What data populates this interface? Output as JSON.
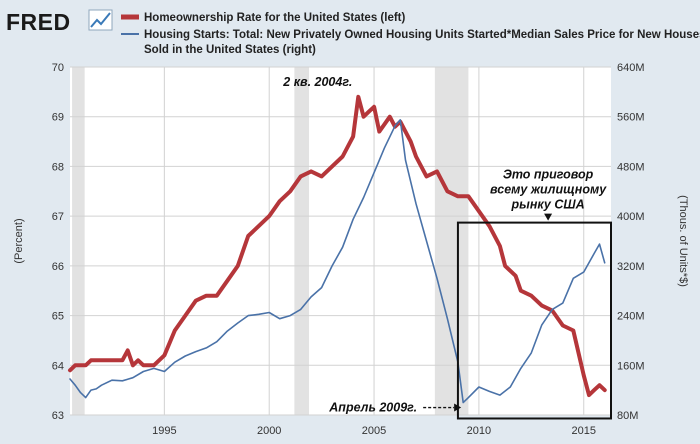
{
  "brand": {
    "name": "FRED"
  },
  "chart_data": {
    "type": "line",
    "x_range": [
      1990.5,
      2016.3
    ],
    "x_ticks": [
      1995,
      2000,
      2005,
      2010,
      2015
    ],
    "x_tick_labels": [
      "1995",
      "2000",
      "2005",
      "2010",
      "2015"
    ],
    "y_left": {
      "label": "(Percent)",
      "range": [
        63,
        70
      ],
      "ticks": [
        63,
        64,
        65,
        66,
        67,
        68,
        69,
        70
      ],
      "tick_labels": [
        "63",
        "64",
        "65",
        "66",
        "67",
        "68",
        "69",
        "70"
      ]
    },
    "y_right": {
      "label": "(Thous. of Units*$)",
      "range": [
        80,
        640
      ],
      "ticks": [
        80,
        160,
        240,
        320,
        400,
        480,
        560,
        640
      ],
      "tick_labels": [
        "80M",
        "160M",
        "240M",
        "320M",
        "400M",
        "480M",
        "560M",
        "640M"
      ]
    },
    "grid": true,
    "recessions": [
      [
        1990.6,
        1991.2
      ],
      [
        2001.2,
        2001.9
      ],
      [
        2007.9,
        2009.5
      ]
    ],
    "series": [
      {
        "name": "Homeownership Rate for the United States (left)",
        "axis": "left",
        "color": "#b5363a",
        "points": [
          [
            1990.5,
            63.9
          ],
          [
            1990.75,
            64.0
          ],
          [
            1991.0,
            64.0
          ],
          [
            1991.25,
            64.0
          ],
          [
            1991.5,
            64.1
          ],
          [
            1991.75,
            64.1
          ],
          [
            1992.0,
            64.1
          ],
          [
            1992.5,
            64.1
          ],
          [
            1993.0,
            64.1
          ],
          [
            1993.25,
            64.3
          ],
          [
            1993.5,
            64.0
          ],
          [
            1993.75,
            64.1
          ],
          [
            1994.0,
            64.0
          ],
          [
            1994.5,
            64.0
          ],
          [
            1995.0,
            64.2
          ],
          [
            1995.5,
            64.7
          ],
          [
            1996.0,
            65.0
          ],
          [
            1996.5,
            65.3
          ],
          [
            1997.0,
            65.4
          ],
          [
            1997.5,
            65.4
          ],
          [
            1998.0,
            65.7
          ],
          [
            1998.5,
            66.0
          ],
          [
            1999.0,
            66.6
          ],
          [
            1999.5,
            66.8
          ],
          [
            2000.0,
            67.0
          ],
          [
            2000.5,
            67.3
          ],
          [
            2001.0,
            67.5
          ],
          [
            2001.5,
            67.8
          ],
          [
            2002.0,
            67.9
          ],
          [
            2002.5,
            67.8
          ],
          [
            2003.0,
            68.0
          ],
          [
            2003.5,
            68.2
          ],
          [
            2004.0,
            68.6
          ],
          [
            2004.25,
            69.4
          ],
          [
            2004.5,
            69.0
          ],
          [
            2004.75,
            69.1
          ],
          [
            2005.0,
            69.2
          ],
          [
            2005.25,
            68.7
          ],
          [
            2005.75,
            69.0
          ],
          [
            2006.0,
            68.8
          ],
          [
            2006.25,
            68.9
          ],
          [
            2006.75,
            68.5
          ],
          [
            2007.0,
            68.2
          ],
          [
            2007.5,
            67.8
          ],
          [
            2008.0,
            67.9
          ],
          [
            2008.5,
            67.5
          ],
          [
            2009.0,
            67.4
          ],
          [
            2009.5,
            67.4
          ],
          [
            2010.0,
            67.1
          ],
          [
            2010.5,
            66.8
          ],
          [
            2011.0,
            66.4
          ],
          [
            2011.25,
            66.0
          ],
          [
            2011.75,
            65.8
          ],
          [
            2012.0,
            65.5
          ],
          [
            2012.5,
            65.4
          ],
          [
            2013.0,
            65.2
          ],
          [
            2013.5,
            65.1
          ],
          [
            2014.0,
            64.8
          ],
          [
            2014.5,
            64.7
          ],
          [
            2015.0,
            63.8
          ],
          [
            2015.25,
            63.4
          ],
          [
            2015.5,
            63.5
          ],
          [
            2015.75,
            63.6
          ],
          [
            2016.0,
            63.5
          ]
        ]
      },
      {
        "name": "Housing Starts: Total: New Privately Owned Housing Units Started*Median Sales Price for New Houses Sold in the United States (right)",
        "axis": "right",
        "color": "#4a72a8",
        "points": [
          [
            1990.5,
            138
          ],
          [
            1990.75,
            128
          ],
          [
            1991.0,
            116
          ],
          [
            1991.25,
            108
          ],
          [
            1991.5,
            120
          ],
          [
            1991.75,
            122
          ],
          [
            1992.0,
            128
          ],
          [
            1992.5,
            136
          ],
          [
            1993.0,
            135
          ],
          [
            1993.5,
            140
          ],
          [
            1994.0,
            150
          ],
          [
            1994.5,
            155
          ],
          [
            1995.0,
            150
          ],
          [
            1995.5,
            165
          ],
          [
            1996.0,
            175
          ],
          [
            1996.5,
            182
          ],
          [
            1997.0,
            188
          ],
          [
            1997.5,
            198
          ],
          [
            1998.0,
            215
          ],
          [
            1998.5,
            228
          ],
          [
            1999.0,
            240
          ],
          [
            1999.5,
            242
          ],
          [
            2000.0,
            245
          ],
          [
            2000.5,
            235
          ],
          [
            2001.0,
            240
          ],
          [
            2001.5,
            250
          ],
          [
            2002.0,
            270
          ],
          [
            2002.5,
            285
          ],
          [
            2003.0,
            320
          ],
          [
            2003.5,
            350
          ],
          [
            2004.0,
            395
          ],
          [
            2004.5,
            430
          ],
          [
            2005.0,
            470
          ],
          [
            2005.5,
            510
          ],
          [
            2006.0,
            545
          ],
          [
            2006.25,
            555
          ],
          [
            2006.5,
            490
          ],
          [
            2007.0,
            420
          ],
          [
            2007.5,
            360
          ],
          [
            2008.0,
            300
          ],
          [
            2008.5,
            235
          ],
          [
            2009.0,
            165
          ],
          [
            2009.25,
            100
          ],
          [
            2009.5,
            108
          ],
          [
            2010.0,
            125
          ],
          [
            2010.5,
            118
          ],
          [
            2011.0,
            112
          ],
          [
            2011.5,
            125
          ],
          [
            2012.0,
            155
          ],
          [
            2012.5,
            180
          ],
          [
            2013.0,
            225
          ],
          [
            2013.5,
            250
          ],
          [
            2014.0,
            260
          ],
          [
            2014.5,
            300
          ],
          [
            2015.0,
            310
          ],
          [
            2015.5,
            340
          ],
          [
            2015.75,
            355
          ],
          [
            2016.0,
            325
          ]
        ]
      }
    ],
    "annotations": [
      {
        "text": "2 кв. 2004г.",
        "x": 2004.25,
        "y_left": 69.4
      },
      {
        "lines": [
          "Это приговор",
          "всему жилищному",
          "рынку США"
        ],
        "x": 2013.3,
        "y_left": 67.4
      },
      {
        "text": "Апрель 2009г.",
        "x": 2009.25,
        "y_left": 63.15
      }
    ],
    "highlight_box": {
      "x_from": 2009.0,
      "x_to": 2016.3,
      "y_left_from": 62.93,
      "y_left_to": 66.87
    }
  }
}
